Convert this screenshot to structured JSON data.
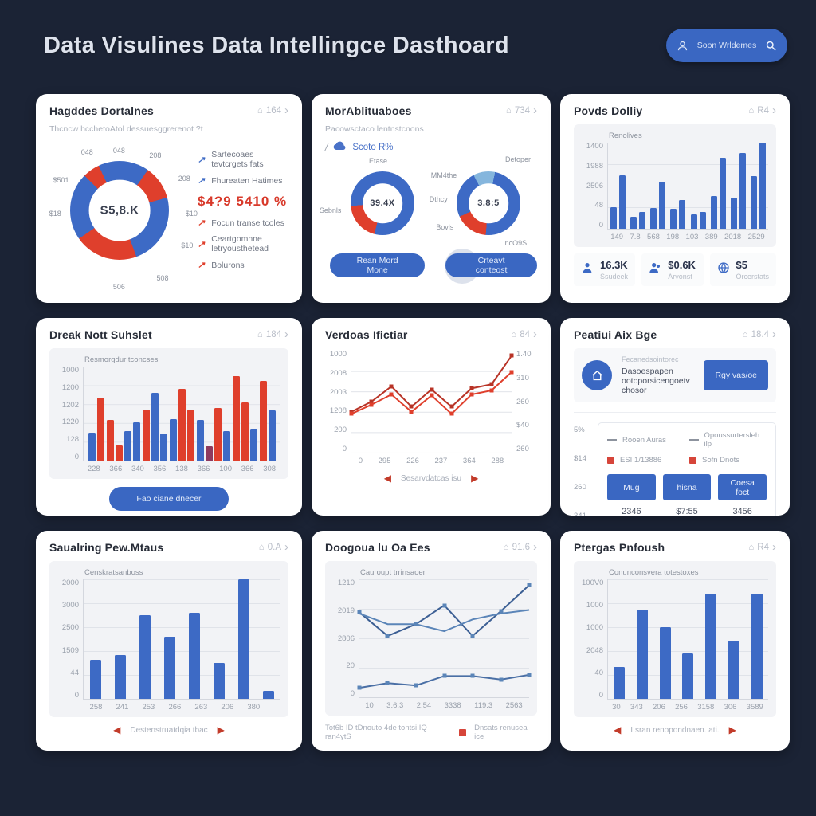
{
  "colors": {
    "background": "#1b2335",
    "card": "#ffffff",
    "chart_bg": "#f2f3f6",
    "accent_blue": "#3d6ac5",
    "light_blue": "#85b6dd",
    "accent_red": "#df3f2c",
    "dark_red": "#b83326",
    "dark_blue_line": "#3c5f94",
    "mid_blue_line": "#5b85b8"
  },
  "header": {
    "title": "Data Visulines Data Intellingce Dasthoard",
    "user_button_label": "Soon Wrldemes"
  },
  "cards": [
    {
      "title": "Hagddes Dortalnes",
      "meta": "164",
      "subtitle": "Thcncw hcchetoAtol dessuesggrerenot ?t",
      "legend_items": [
        {
          "label": "Sartecoaes tevtcrgets fats"
        },
        {
          "label": "Fhureaten Hatimes"
        },
        {
          "label": "$4?9 5410 %"
        },
        {
          "label": "Focun transe tcoles"
        },
        {
          "label": "Ceartgomnne letryousthetead"
        },
        {
          "label": "Bolurons"
        }
      ]
    },
    {
      "title": "MorAblituaboes",
      "meta": "734",
      "subtitle": "Pacowsctaco lentnstcnons",
      "action_slash": "/",
      "action_label": "Scoto R%",
      "buttons": [
        "Rean Mord Mone",
        "Crteavt conteost"
      ]
    },
    {
      "title": "Povds Dolliy",
      "meta": "R4",
      "stats": [
        {
          "value": "16.3K",
          "label": "Ssudeek"
        },
        {
          "value": "$0.6K",
          "label": "Arvonst"
        },
        {
          "value": "$5",
          "label": "Orcerstats"
        }
      ]
    },
    {
      "title": "Dreak Nott Suhslet",
      "meta": "184",
      "button": "Fao ciane dnecer"
    },
    {
      "title": "Verdoas Ifictiar",
      "meta": "84",
      "pager": "Sesarvdatcas isu"
    },
    {
      "title": "Peatiui Aix Bge",
      "meta": "18.4",
      "banner_small": "Fecanedsointorec",
      "banner_main": "Dasoespapen ootoporsicengoetv chosor",
      "banner_button": "Rgy vas/oe",
      "axis_values": [
        "5%",
        "$14",
        "260",
        "341"
      ],
      "legend_items": [
        {
          "label": "Rooen Auras"
        },
        {
          "label": "Opoussurtersleh ilp"
        },
        {
          "label": "ESI 1/13886"
        },
        {
          "label": "Sofn Dnots"
        }
      ],
      "buttons": [
        {
          "label": "Mug",
          "value": "2346"
        },
        {
          "label": "hisna",
          "value": "$7:55"
        },
        {
          "label": "Coesa foct",
          "value": "3456"
        }
      ]
    },
    {
      "title": "Saualring Pew.Mtaus",
      "meta": "0.A",
      "pager": "Destenstruatdqia tbac"
    },
    {
      "title": "Doogoua lu Oa Ees",
      "meta": "91.6",
      "footer_text": "Tot6b ID tDnouto 4de tontsi IQ ran4ytS",
      "footer_legend": "Dnsats renusea ice"
    },
    {
      "title": "Ptergas Pnfoush",
      "meta": "R4",
      "pager": "Lsran renopondnaen. ati."
    }
  ],
  "chart_data": [
    {
      "type": "pie",
      "title": "Hagddes Dortalnes",
      "center_label": "S5,8.K",
      "segments_deg": [
        {
          "color": "#3d6ac5",
          "deg": 35
        },
        {
          "color": "#df3f2c",
          "deg": 40
        },
        {
          "color": "#3d6ac5",
          "deg": 85
        },
        {
          "color": "#df3f2c",
          "deg": 75
        },
        {
          "color": "#3d6ac5",
          "deg": 80
        },
        {
          "color": "#df3f2c",
          "deg": 20
        },
        {
          "color": "#3d6ac5",
          "deg": 25
        }
      ],
      "ring_labels": [
        {
          "text": "048",
          "x": 48,
          "y": 9
        },
        {
          "text": "208",
          "x": 73,
          "y": 12
        },
        {
          "text": "208",
          "x": 93,
          "y": 27
        },
        {
          "text": "$10",
          "x": 98,
          "y": 50
        },
        {
          "text": "$10",
          "x": 95,
          "y": 71
        },
        {
          "text": "508",
          "x": 78,
          "y": 92
        },
        {
          "text": "506",
          "x": 48,
          "y": 98
        },
        {
          "text": "$18",
          "x": 4,
          "y": 50
        },
        {
          "text": "$501",
          "x": 8,
          "y": 28
        },
        {
          "text": "048",
          "x": 26,
          "y": 10
        }
      ]
    },
    {
      "type": "pie_pair",
      "title": "MorAblituaboes",
      "donuts": [
        {
          "center_label": "39.4X",
          "segments_deg": [
            {
              "color": "#3d6ac5",
              "deg": 195
            },
            {
              "color": "#df3f2c",
              "deg": 70
            },
            {
              "color": "#3d6ac5",
              "deg": 95
            }
          ],
          "labels": [
            {
              "text": "Etase",
              "x": 50,
              "y": 5
            },
            {
              "text": "Sebnls",
              "x": 5,
              "y": 58
            }
          ]
        },
        {
          "center_label": "3.8:5",
          "segments_deg": [
            {
              "color": "#85b6dd",
              "deg": 12
            },
            {
              "color": "#3d6ac5",
              "deg": 173
            },
            {
              "color": "#df3f2c",
              "deg": 60
            },
            {
              "color": "#3d6ac5",
              "deg": 87
            },
            {
              "color": "#85b6dd",
              "deg": 28
            }
          ],
          "labels": [
            {
              "text": "Detoper",
              "x": 82,
              "y": 3
            },
            {
              "text": "MM4the",
              "x": 12,
              "y": 20
            },
            {
              "text": "Dthcy",
              "x": 7,
              "y": 46
            },
            {
              "text": "Bovls",
              "x": 13,
              "y": 75
            },
            {
              "text": "ncO9S",
              "x": 80,
              "y": 92
            }
          ]
        }
      ]
    },
    {
      "type": "bar",
      "subtype": "grouped",
      "title": "Povds Dolliy",
      "legend": "Renolives",
      "categories": [
        "149",
        "7.8",
        "568",
        "198",
        "103",
        "389",
        "2018",
        "2529"
      ],
      "ylabels": [
        "1400",
        "1988",
        "2506",
        "48",
        "0"
      ],
      "series": [
        {
          "name": "series-1",
          "height_pct": [
            25,
            14,
            24,
            23,
            17,
            38,
            36,
            61
          ]
        },
        {
          "name": "series-2",
          "height_pct": [
            62,
            19,
            55,
            33,
            19,
            82,
            88,
            100
          ]
        }
      ]
    },
    {
      "type": "bar",
      "subtype": "multicolor",
      "title": "Dreak Nott Suhslet",
      "legend": "Resmorgdur tconcses",
      "categories": [
        "228",
        "366",
        "340",
        "356",
        "138",
        "366",
        "100",
        "366",
        "308"
      ],
      "ylabels": [
        "1000",
        "1200",
        "1202",
        "1220",
        "128",
        "0"
      ],
      "bars": [
        {
          "c": "#3d6ac5",
          "v": 30
        },
        {
          "c": "#df3f2c",
          "v": 67
        },
        {
          "c": "#df3f2c",
          "v": 43
        },
        {
          "c": "#df3f2c",
          "v": 16
        },
        {
          "c": "#3d6ac5",
          "v": 31
        },
        {
          "c": "#3d6ac5",
          "v": 41
        },
        {
          "c": "#df3f2c",
          "v": 54
        },
        {
          "c": "#3d6ac5",
          "v": 72
        },
        {
          "c": "#3d6ac5",
          "v": 29
        },
        {
          "c": "#3d6ac5",
          "v": 44
        },
        {
          "c": "#df3f2c",
          "v": 76
        },
        {
          "c": "#df3f2c",
          "v": 54
        },
        {
          "c": "#3d6ac5",
          "v": 43
        },
        {
          "c": "#8e3a5e",
          "v": 15
        },
        {
          "c": "#df3f2c",
          "v": 56
        },
        {
          "c": "#3d6ac5",
          "v": 31
        },
        {
          "c": "#df3f2c",
          "v": 90
        },
        {
          "c": "#df3f2c",
          "v": 62
        },
        {
          "c": "#3d6ac5",
          "v": 34
        },
        {
          "c": "#df3f2c",
          "v": 85
        },
        {
          "c": "#3d6ac5",
          "v": 53
        }
      ]
    },
    {
      "type": "line",
      "title": "Verdoas Ifictiar",
      "x": [
        "0",
        "295",
        "226",
        "237",
        "364",
        "288"
      ],
      "ylabels": [
        "1000",
        "2008",
        "2003",
        "1208",
        "200",
        "0"
      ],
      "ylabels_right": [
        "1.40",
        "310",
        "260",
        "$40",
        "260"
      ],
      "lines": [
        {
          "color": "#b83326",
          "marker": "#b83326",
          "height_pct": [
            40,
            50,
            65,
            45,
            62,
            45,
            63,
            67,
            95
          ]
        },
        {
          "color": "#df3f2c",
          "marker": "#df3f2c",
          "height_pct": [
            38,
            47,
            57,
            40,
            56,
            38,
            57,
            61,
            79
          ]
        }
      ]
    },
    {
      "type": "panel",
      "title": "Peatiui Aix Bge",
      "button_values": [
        "2346",
        "$7:55",
        "3456"
      ]
    },
    {
      "type": "bar",
      "subtype": "simple",
      "title": "Saualring Pew.Mtaus",
      "legend": "Censkratsanboss",
      "categories": [
        "258",
        "241",
        "253",
        "266",
        "263",
        "206",
        "380",
        ""
      ],
      "ylabels": [
        "2000",
        "3000",
        "2500",
        "1509",
        "44",
        "0"
      ],
      "values": [
        33,
        37,
        70,
        52,
        72,
        30,
        100,
        7
      ]
    },
    {
      "type": "line",
      "title": "Doogoua lu Oa Ees",
      "legend": "Cauroupt trrinsaoer",
      "x": [
        "10",
        "3.6.3",
        "2.54",
        "3338",
        "119.3",
        "2563"
      ],
      "ylabels": [
        "1210",
        "2019",
        "2806",
        "20",
        "0"
      ],
      "lines": [
        {
          "color": "#3c5f94",
          "marker": "#5b85b8",
          "height_pct": [
            72,
            52,
            62,
            78,
            52,
            73,
            95
          ]
        },
        {
          "color": "#5b85b8",
          "marker": "",
          "height_pct": [
            71,
            62,
            62,
            56,
            66,
            71,
            74
          ]
        },
        {
          "color": "#4a6fa5",
          "marker": "#5b85b8",
          "height_pct": [
            8,
            12,
            10,
            18,
            18,
            15,
            19
          ]
        }
      ]
    },
    {
      "type": "bar",
      "subtype": "simple",
      "title": "Ptergas Pnfoush",
      "legend": "Conunconsvera totestoxes",
      "categories": [
        "30",
        "343",
        "206",
        "256",
        "3158",
        "306",
        "3589"
      ],
      "ylabels": [
        "100V0",
        "1000",
        "1000",
        "2048",
        "40",
        "0"
      ],
      "values": [
        27,
        75,
        60,
        38,
        88,
        49,
        88
      ]
    }
  ]
}
